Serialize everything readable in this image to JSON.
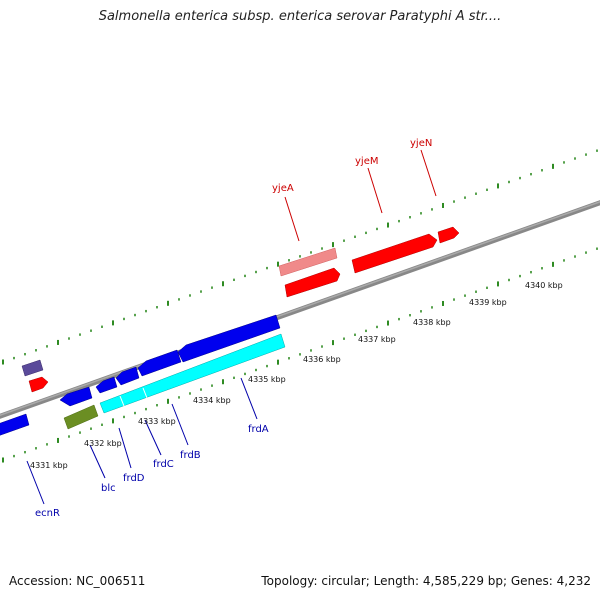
{
  "title": "Salmonella enterica subsp. enterica serovar Paratyphi A str....",
  "footer": {
    "accession": "Accession: NC_006511",
    "summary": "Topology: circular; Length: 4,585,229 bp; Genes: 4,232"
  },
  "colors": {
    "forward_gene": "#ff0000",
    "forward_gene_light": "#f08a8a",
    "reverse_gene": "#0000ee",
    "reverse_gene_purple": "#5a4a9a",
    "reverse_gene_cyan": "#00ffff",
    "reverse_gene_olive": "#6b8e23",
    "backbone": "#808080",
    "tick": "#2e8b22",
    "forward_label": "#cc0000",
    "reverse_label": "#0000aa"
  },
  "scale": {
    "unit": "kbp",
    "labels": [
      "4331 kbp",
      "4332 kbp",
      "4333 kbp",
      "4334 kbp",
      "4335 kbp",
      "4336 kbp",
      "4337 kbp",
      "4338 kbp",
      "4339 kbp",
      "4340 kbp"
    ]
  },
  "genes": {
    "forward": [
      {
        "name": "yjeA",
        "color": "#f08a8a"
      },
      {
        "name": "yjeM",
        "color": "#ff0000"
      },
      {
        "name": "yjeN",
        "color": "#ff0000"
      },
      {
        "name": "",
        "color": "#ff0000"
      },
      {
        "name": "",
        "color": "#ff0000"
      }
    ],
    "reverse": [
      {
        "name": "ecnR",
        "color": "#0000ee"
      },
      {
        "name": "blc",
        "color": "#0000ee"
      },
      {
        "name": "frdD",
        "color": "#0000ee"
      },
      {
        "name": "frdC",
        "color": "#0000ee"
      },
      {
        "name": "frdB",
        "color": "#0000ee"
      },
      {
        "name": "frdA",
        "color": "#0000ee"
      },
      {
        "name": "",
        "color": "#00ffff"
      },
      {
        "name": "",
        "color": "#6b8e23"
      },
      {
        "name": "",
        "color": "#5a4a9a"
      }
    ]
  }
}
